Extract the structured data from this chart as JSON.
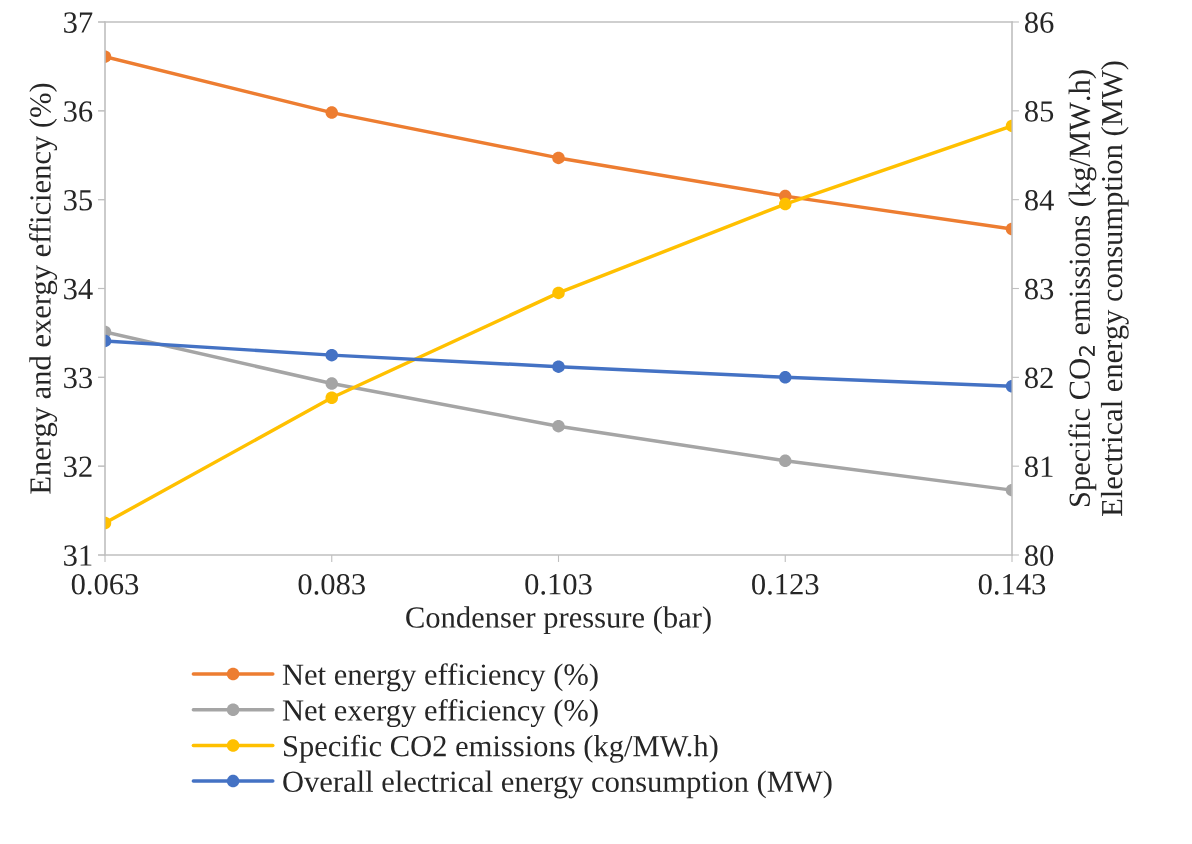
{
  "chart_data": {
    "type": "line",
    "xlabel": "Condenser pressure (bar)",
    "ylabel": "Energy and exergy efficiency (%)",
    "y2label": "Specific CO$_{2}$ emissions (kg/MW.h)\nElectrical energy consumption (MW)",
    "categories": [
      "0.063",
      "0.083",
      "0.103",
      "0.123",
      "0.143"
    ],
    "series": [
      {
        "name": "Net energy efficiency (%)",
        "color": "#ed7d31",
        "values": [
          36.61,
          35.98,
          35.47,
          35.04,
          34.67
        ]
      },
      {
        "name": "Net exergy efficiency (%)",
        "color": "#a5a5a5",
        "values": [
          33.51,
          32.93,
          32.45,
          32.06,
          31.73
        ]
      },
      {
        "name": "Specific CO2 emissions (kg/MW.h)",
        "color": "#ffc000",
        "axis": "y2",
        "values": [
          80.36,
          81.77,
          82.95,
          83.95,
          84.83
        ]
      },
      {
        "name": "Overall electrical energy consumption (MW)",
        "color": "#4472c4",
        "axis": "y2",
        "values": [
          82.41,
          82.25,
          82.12,
          82.0,
          81.9
        ]
      }
    ],
    "ylim": [
      31,
      37
    ],
    "yticks": [
      31,
      32,
      33,
      34,
      35,
      36,
      37
    ],
    "y2lim": [
      80,
      86
    ],
    "y2ticks": [
      80,
      81,
      82,
      83,
      84,
      85,
      86
    ],
    "marker": "circle",
    "line_style": "solid",
    "grid": false,
    "legend": "bottom"
  }
}
